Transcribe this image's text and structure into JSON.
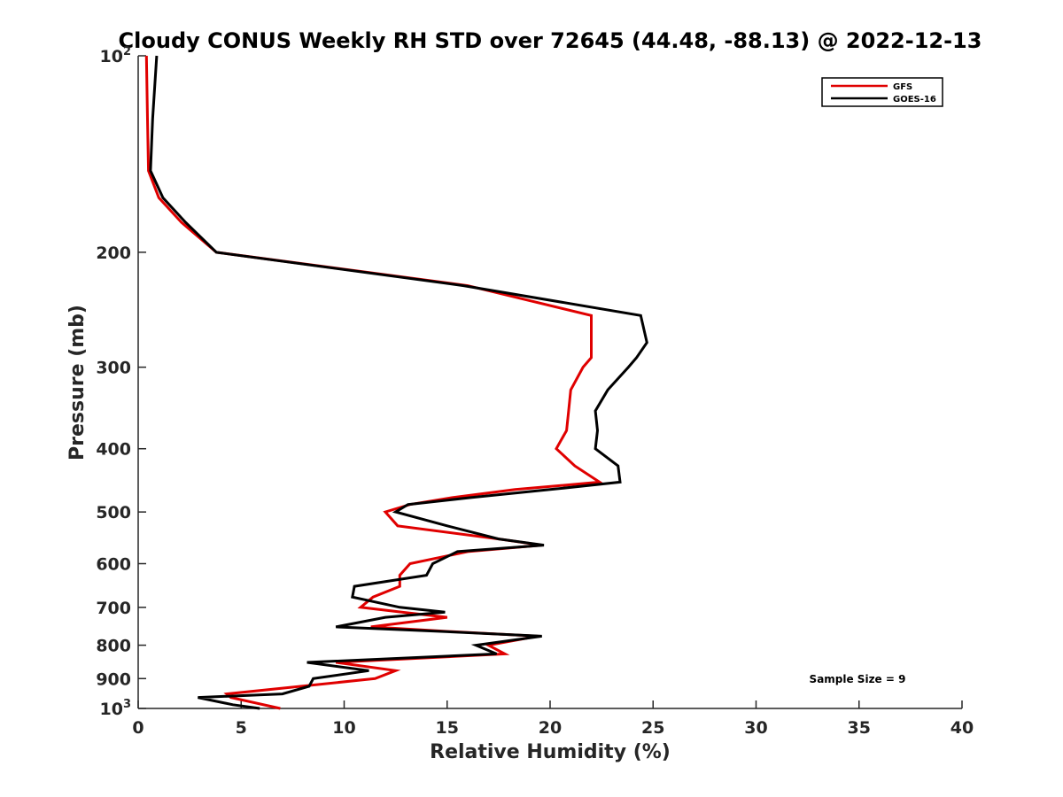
{
  "chart_data": {
    "type": "line",
    "title": "Cloudy CONUS Weekly RH STD over 72645 (44.48, -88.13) @ 2022-12-13",
    "xlabel": "Relative Humidity (%)",
    "ylabel": "Pressure (mb)",
    "xlim": [
      0,
      40
    ],
    "ylim": [
      100,
      1000
    ],
    "yscale": "log",
    "y_reversed": true,
    "grid": false,
    "legend_position": "top-right",
    "xticks": [
      0,
      5,
      10,
      15,
      20,
      25,
      30,
      35,
      40
    ],
    "xtick_labels": [
      "0",
      "5",
      "10",
      "15",
      "20",
      "25",
      "30",
      "35",
      "40"
    ],
    "yticks": [
      {
        "value": 100,
        "base": "10",
        "exp": "2"
      },
      {
        "value": 200,
        "label": "200"
      },
      {
        "value": 300,
        "label": "300"
      },
      {
        "value": 400,
        "label": "400"
      },
      {
        "value": 500,
        "label": "500"
      },
      {
        "value": 600,
        "label": "600"
      },
      {
        "value": 700,
        "label": "700"
      },
      {
        "value": 800,
        "label": "800"
      },
      {
        "value": 900,
        "label": "900"
      },
      {
        "value": 1000,
        "base": "10",
        "exp": "3"
      }
    ],
    "annotation": "Sample Size = 9",
    "series": [
      {
        "name": "GFS",
        "color": "#e00000",
        "points": [
          [
            0.4,
            100
          ],
          [
            0.45,
            125
          ],
          [
            0.5,
            150
          ],
          [
            1.0,
            165
          ],
          [
            2.1,
            180
          ],
          [
            3.8,
            200
          ],
          [
            16.0,
            225
          ],
          [
            22.0,
            250
          ],
          [
            22.0,
            275
          ],
          [
            22.0,
            290
          ],
          [
            21.6,
            300
          ],
          [
            21.0,
            325
          ],
          [
            20.9,
            350
          ],
          [
            20.8,
            375
          ],
          [
            20.3,
            400
          ],
          [
            21.2,
            425
          ],
          [
            22.4,
            450
          ],
          [
            18.3,
            462
          ],
          [
            15.3,
            475
          ],
          [
            13.2,
            487
          ],
          [
            12.0,
            500
          ],
          [
            12.6,
            525
          ],
          [
            17.5,
            550
          ],
          [
            19.6,
            562
          ],
          [
            16.0,
            575
          ],
          [
            13.2,
            600
          ],
          [
            12.7,
            625
          ],
          [
            12.7,
            650
          ],
          [
            11.4,
            675
          ],
          [
            10.8,
            700
          ],
          [
            12.8,
            712
          ],
          [
            15.0,
            725
          ],
          [
            11.3,
            750
          ],
          [
            15.0,
            762
          ],
          [
            19.4,
            775
          ],
          [
            17.0,
            800
          ],
          [
            17.8,
            825
          ],
          [
            9.6,
            850
          ],
          [
            12.5,
            875
          ],
          [
            11.5,
            900
          ],
          [
            4.3,
            950
          ],
          [
            4.5,
            962
          ],
          [
            6.9,
            1000
          ]
        ]
      },
      {
        "name": "GOES-16",
        "color": "#000000",
        "points": [
          [
            0.9,
            100
          ],
          [
            0.7,
            125
          ],
          [
            0.6,
            150
          ],
          [
            1.2,
            165
          ],
          [
            2.3,
            180
          ],
          [
            3.8,
            200
          ],
          [
            15.8,
            225
          ],
          [
            24.4,
            250
          ],
          [
            24.7,
            275
          ],
          [
            24.2,
            290
          ],
          [
            23.8,
            300
          ],
          [
            22.8,
            325
          ],
          [
            22.2,
            350
          ],
          [
            22.3,
            375
          ],
          [
            22.2,
            400
          ],
          [
            23.3,
            425
          ],
          [
            23.4,
            450
          ],
          [
            20.0,
            462
          ],
          [
            16.2,
            475
          ],
          [
            13.1,
            487
          ],
          [
            12.5,
            500
          ],
          [
            15.0,
            525
          ],
          [
            17.5,
            550
          ],
          [
            19.7,
            562
          ],
          [
            15.5,
            575
          ],
          [
            14.3,
            600
          ],
          [
            14.0,
            625
          ],
          [
            10.5,
            650
          ],
          [
            10.4,
            675
          ],
          [
            12.7,
            700
          ],
          [
            14.9,
            712
          ],
          [
            12.0,
            725
          ],
          [
            9.6,
            750
          ],
          [
            14.7,
            762
          ],
          [
            19.6,
            775
          ],
          [
            16.4,
            800
          ],
          [
            17.4,
            825
          ],
          [
            8.2,
            850
          ],
          [
            11.2,
            875
          ],
          [
            8.5,
            900
          ],
          [
            8.3,
            925
          ],
          [
            7.0,
            950
          ],
          [
            2.9,
            962
          ],
          [
            4.6,
            987
          ],
          [
            5.9,
            1000
          ]
        ]
      }
    ]
  }
}
